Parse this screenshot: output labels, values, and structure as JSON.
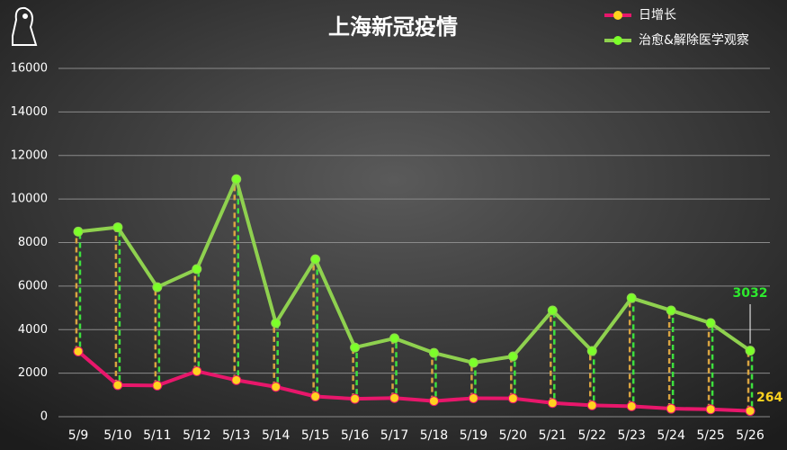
{
  "chart_data": {
    "type": "line",
    "title": "上海新冠疫情",
    "categories": [
      "5/9",
      "5/10",
      "5/11",
      "5/12",
      "5/13",
      "5/14",
      "5/15",
      "5/16",
      "5/17",
      "5/18",
      "5/19",
      "5/20",
      "5/21",
      "5/22",
      "5/23",
      "5/24",
      "5/25",
      "5/26"
    ],
    "series": [
      {
        "name": "日增长",
        "color": "#e8176b",
        "marker_color": "#ffd21f",
        "values": [
          3000,
          1450,
          1430,
          2090,
          1680,
          1370,
          930,
          820,
          860,
          720,
          850,
          840,
          630,
          520,
          480,
          370,
          340,
          264
        ]
      },
      {
        "name": "治愈&解除医学观察",
        "color": "#8fd14f",
        "marker_color": "#7cff2a",
        "values": [
          8500,
          8700,
          5950,
          6780,
          10910,
          4300,
          7230,
          3180,
          3600,
          2930,
          2480,
          2770,
          4880,
          3020,
          5450,
          4880,
          4300,
          3032
        ]
      }
    ],
    "ylim": [
      0,
      16000
    ],
    "yticks": [
      0,
      2000,
      4000,
      6000,
      8000,
      10000,
      12000,
      14000,
      16000
    ],
    "grid": true,
    "legend_position": "top-right"
  }
}
